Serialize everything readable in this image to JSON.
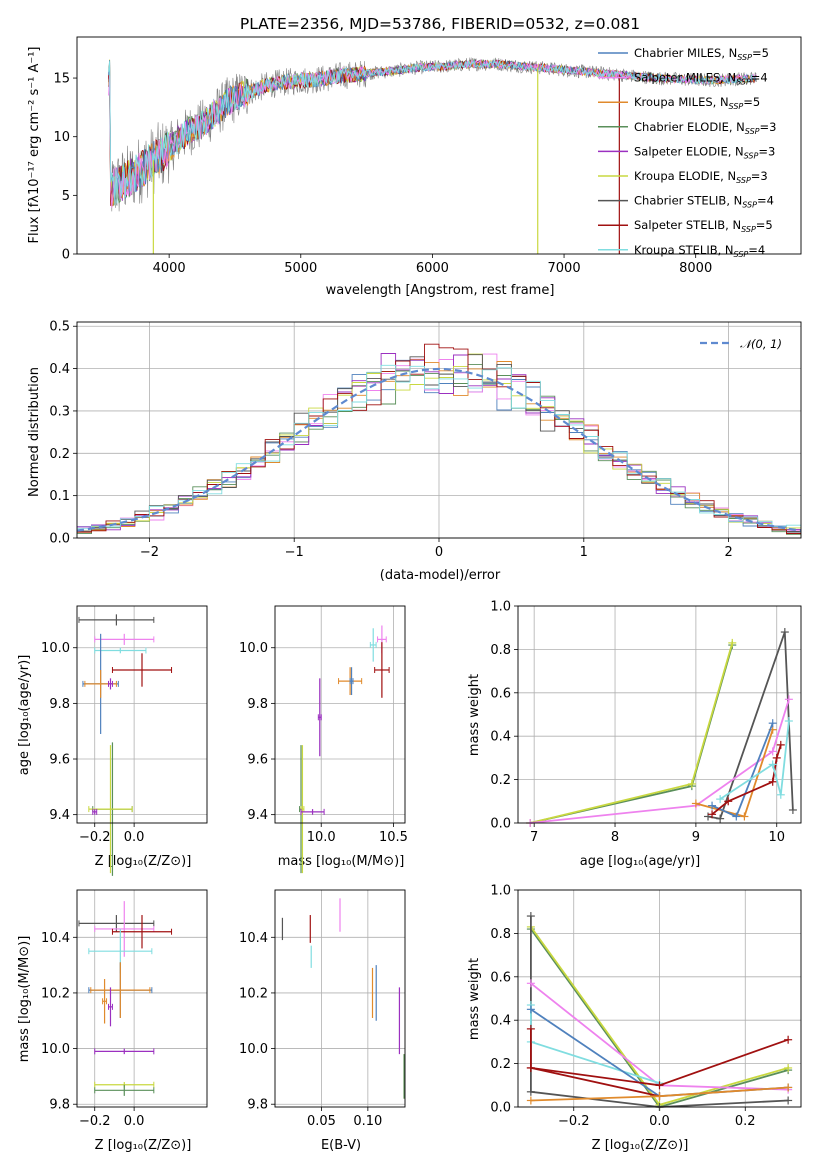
{
  "colors": {
    "grid": "#b0b0b0",
    "chabrier_miles": "#4f81bd",
    "salpeter_miles": "#ee82ee",
    "kroupa_miles": "#e08a2c",
    "chabrier_elodie": "#5a8f5a",
    "salpeter_elodie": "#9b30c0",
    "kroupa_elodie": "#c9d840",
    "chabrier_stelib": "#555555",
    "salpeter_stelib": "#a01010",
    "kroupa_stelib": "#80dde0",
    "normal": "#5f8ad0"
  },
  "series_names": [
    "Chabrier MILES, N_SSP=5",
    "Salpeter MILES, N_SSP=4",
    "Kroupa MILES, N_SSP=5",
    "Chabrier ELODIE, N_SSP=3",
    "Salpeter ELODIE, N_SSP=3",
    "Kroupa ELODIE, N_SSP=3",
    "Chabrier STELIB, N_SSP=4",
    "Salpeter STELIB, N_SSP=5",
    "Kroupa STELIB, N_SSP=4"
  ],
  "chart_data": [
    {
      "id": "spectrum",
      "type": "line",
      "title": "PLATE=2356, MJD=53786, FIBERID=0532, z=0.081",
      "xlabel": "wavelength [Angstrom, rest frame]",
      "ylabel": "Flux [fλ10⁻¹⁷ erg cm⁻² s⁻¹ A⁻¹]",
      "xlim": [
        3300,
        8800
      ],
      "ylim": [
        0,
        18.5
      ],
      "xticks": [
        4000,
        5000,
        6000,
        7000,
        8000
      ],
      "yticks": [
        0,
        5,
        10,
        15
      ],
      "legend_position": "top-right",
      "legend": [
        {
          "name": "Chabrier MILES, N",
          "sub": "SSP",
          "val": "=5",
          "color": "#4f81bd"
        },
        {
          "name": "Salpeter MILES, N",
          "sub": "SSP",
          "val": "=4",
          "color": "#ee82ee"
        },
        {
          "name": "Kroupa MILES, N",
          "sub": "SSP",
          "val": "=5",
          "color": "#e08a2c"
        },
        {
          "name": "Chabrier ELODIE, N",
          "sub": "SSP",
          "val": "=3",
          "color": "#5a8f5a"
        },
        {
          "name": "Salpeter ELODIE, N",
          "sub": "SSP",
          "val": "=3",
          "color": "#9b30c0"
        },
        {
          "name": "Kroupa ELODIE, N",
          "sub": "SSP",
          "val": "=3",
          "color": "#c9d840"
        },
        {
          "name": "Chabrier STELIB, N",
          "sub": "SSP",
          "val": "=4",
          "color": "#555555"
        },
        {
          "name": "Salpeter STELIB, N",
          "sub": "SSP",
          "val": "=5",
          "color": "#a01010"
        },
        {
          "name": "Kroupa STELIB, N",
          "sub": "SSP",
          "val": "=4",
          "color": "#80dde0"
        }
      ],
      "data_curve": {
        "x": [
          3550,
          3700,
          3850,
          3950,
          4050,
          4150,
          4250,
          4350,
          4450,
          4550,
          4650,
          4750,
          4850,
          5000,
          5150,
          5300,
          5500,
          5700,
          5900,
          6100,
          6300,
          6500,
          6700,
          6900,
          7100,
          7300,
          7500,
          7700,
          7900,
          8100,
          8300,
          8450
        ],
        "y": [
          5.5,
          6.5,
          7.8,
          8.5,
          9.5,
          10.5,
          11.0,
          12.0,
          13.0,
          13.6,
          14.0,
          14.4,
          14.6,
          14.8,
          14.9,
          15.2,
          15.4,
          15.6,
          15.9,
          16.0,
          16.2,
          16.2,
          16.0,
          15.8,
          15.6,
          15.4,
          15.2,
          15.0,
          14.9,
          14.8,
          14.9,
          15.0
        ]
      }
    },
    {
      "id": "residuals",
      "type": "line",
      "xlabel": "(data-model)/error",
      "ylabel": "Normed distribution",
      "xlim": [
        -2.5,
        2.5
      ],
      "ylim": [
        0,
        0.51
      ],
      "xticks": [
        -2,
        -1,
        0,
        1,
        2
      ],
      "xtick_labels": [
        "−2",
        "−1",
        "0",
        "1",
        "2"
      ],
      "yticks": [
        0.0,
        0.1,
        0.2,
        0.3,
        0.4,
        0.5
      ],
      "legend": [
        {
          "name": "𝒩(0, 1)",
          "color": "#5f8ad0"
        }
      ],
      "legend_position": "top-right"
    },
    {
      "id": "z_age",
      "type": "scatter",
      "xlabel": "Z [log₁₀(Z/Z⊙)]",
      "ylabel": "age  [log₁₀(age/yr)]",
      "xlim": [
        -0.29,
        0.37
      ],
      "ylim": [
        9.37,
        10.15
      ],
      "xticks": [
        -0.2,
        0.0
      ],
      "xtick_labels": [
        "−0.2",
        "0.0"
      ],
      "yticks": [
        9.4,
        9.6,
        9.8,
        10.0
      ],
      "points": [
        {
          "x": -0.09,
          "xerr": 0.19,
          "y": 10.1,
          "yerr": 0.02,
          "series": 6
        },
        {
          "x": -0.05,
          "xerr": 0.15,
          "y": 10.03,
          "yerr": 0.02,
          "series": 1
        },
        {
          "x": -0.07,
          "xerr": 0.13,
          "y": 9.99,
          "yerr": 0.01,
          "series": 8
        },
        {
          "x": 0.04,
          "xerr": 0.15,
          "y": 9.92,
          "yerr": 0.06,
          "series": 7
        },
        {
          "x": -0.17,
          "xerr": 0.09,
          "y": 9.87,
          "yerr": 0.18,
          "series": 0
        },
        {
          "x": -0.17,
          "xerr": 0.08,
          "y": 9.87,
          "yerr": 0.05,
          "series": 2
        },
        {
          "x": -0.12,
          "xerr": 0.01,
          "y": 9.87,
          "yerr": 0.02,
          "series": 4
        },
        {
          "x": -0.11,
          "xerr": 0.1,
          "y": 9.42,
          "yerr": 0.24,
          "series": 3
        },
        {
          "x": -0.12,
          "xerr": 0.11,
          "y": 9.42,
          "yerr": 0.23,
          "series": 5
        },
        {
          "x": -0.2,
          "xerr": 0.01,
          "y": 9.41,
          "yerr": 0.01,
          "series": 4
        }
      ]
    },
    {
      "id": "mass_age",
      "type": "scatter",
      "xlabel": "mass [log₁₀(M/M⊙)]",
      "ylabel": "",
      "xlim": [
        9.68,
        10.58
      ],
      "ylim": [
        9.37,
        10.15
      ],
      "xticks": [
        10.0,
        10.5
      ],
      "xtick_labels": [
        "10.0",
        "10.5"
      ],
      "yticks": [
        9.4,
        9.6,
        9.8,
        10.0
      ],
      "ytick_labels": [
        "9.4",
        "9.6",
        "9.8",
        "10.0"
      ],
      "points": [
        {
          "x": 10.42,
          "xerr": 0.03,
          "y": 10.03,
          "yerr": 0.05,
          "series": 1
        },
        {
          "x": 10.36,
          "xerr": 0.02,
          "y": 10.01,
          "yerr": 0.06,
          "series": 8
        },
        {
          "x": 10.42,
          "xerr": 0.05,
          "y": 9.92,
          "yerr": 0.1,
          "series": 7
        },
        {
          "x": 10.2,
          "xerr": 0.08,
          "y": 9.88,
          "yerr": 0.05,
          "series": 2
        },
        {
          "x": 10.21,
          "xerr": 0.01,
          "y": 9.88,
          "yerr": 0.05,
          "series": 0
        },
        {
          "x": 9.99,
          "xerr": 0.01,
          "y": 9.75,
          "yerr": 0.14,
          "series": 4
        },
        {
          "x": 9.86,
          "xerr": 0.01,
          "y": 9.42,
          "yerr": 0.23,
          "series": 3
        },
        {
          "x": 9.87,
          "xerr": 0.01,
          "y": 9.42,
          "yerr": 0.23,
          "series": 5
        },
        {
          "x": 9.94,
          "xerr": 0.08,
          "y": 9.41,
          "yerr": 0.01,
          "series": 4
        }
      ]
    },
    {
      "id": "age_weight",
      "type": "line",
      "xlabel": "age  [log₁₀(age/yr)]",
      "ylabel": "mass weight",
      "xlim": [
        6.8,
        10.3
      ],
      "ylim": [
        0,
        1.0
      ],
      "xticks": [
        7,
        8,
        9,
        10
      ],
      "yticks": [
        0.0,
        0.2,
        0.4,
        0.6,
        0.8,
        1.0
      ],
      "series": [
        {
          "series": 3,
          "x": [
            6.95,
            8.95,
            9.45
          ],
          "y": [
            0.0,
            0.17,
            0.82
          ]
        },
        {
          "series": 5,
          "x": [
            6.95,
            8.95,
            9.45
          ],
          "y": [
            0.0,
            0.18,
            0.83
          ]
        },
        {
          "series": 6,
          "x": [
            9.15,
            9.3,
            10.1,
            10.2
          ],
          "y": [
            0.03,
            0.02,
            0.88,
            0.06
          ]
        },
        {
          "series": 1,
          "x": [
            6.95,
            9.0,
            9.95,
            10.15
          ],
          "y": [
            0.0,
            0.08,
            0.33,
            0.57
          ]
        },
        {
          "series": 2,
          "x": [
            9.0,
            9.6,
            9.95
          ],
          "y": [
            0.09,
            0.03,
            0.43
          ]
        },
        {
          "series": 0,
          "x": [
            9.2,
            9.5,
            9.95
          ],
          "y": [
            0.08,
            0.03,
            0.46
          ]
        },
        {
          "series": 7,
          "x": [
            9.2,
            9.4,
            9.95,
            10.0,
            10.05
          ],
          "y": [
            0.04,
            0.1,
            0.19,
            0.3,
            0.36
          ]
        },
        {
          "series": 8,
          "x": [
            9.3,
            9.95,
            10.05,
            10.15
          ],
          "y": [
            0.11,
            0.27,
            0.13,
            0.47
          ]
        }
      ]
    },
    {
      "id": "z_mass",
      "type": "scatter",
      "xlabel": "Z [log₁₀(Z/Z⊙)]",
      "ylabel": "mass [log₁₀(M/M⊙)]",
      "xlim": [
        -0.29,
        0.37
      ],
      "ylim": [
        9.79,
        10.57
      ],
      "xticks": [
        -0.2,
        0.0
      ],
      "xtick_labels": [
        "−0.2",
        "0.0"
      ],
      "yticks": [
        9.8,
        10.0,
        10.2,
        10.4
      ],
      "points": [
        {
          "x": -0.09,
          "xerr": 0.19,
          "y": 10.45,
          "yerr": 0.03,
          "series": 6
        },
        {
          "x": -0.05,
          "xerr": 0.15,
          "y": 10.43,
          "yerr": 0.1,
          "series": 1
        },
        {
          "x": 0.04,
          "xerr": 0.15,
          "y": 10.42,
          "yerr": 0.06,
          "series": 7
        },
        {
          "x": -0.07,
          "xerr": 0.16,
          "y": 10.35,
          "yerr": 0.08,
          "series": 8
        },
        {
          "x": -0.07,
          "xerr": 0.16,
          "y": 10.21,
          "yerr": 0.1,
          "series": 0
        },
        {
          "x": -0.07,
          "xerr": 0.15,
          "y": 10.21,
          "yerr": 0.1,
          "series": 2
        },
        {
          "x": -0.15,
          "xerr": 0.01,
          "y": 10.17,
          "yerr": 0.08,
          "series": 2
        },
        {
          "x": -0.12,
          "xerr": 0.01,
          "y": 10.15,
          "yerr": 0.07,
          "series": 4
        },
        {
          "x": -0.05,
          "xerr": 0.15,
          "y": 9.99,
          "yerr": 0.01,
          "series": 4
        },
        {
          "x": -0.05,
          "xerr": 0.15,
          "y": 9.87,
          "yerr": 0.01,
          "series": 5
        },
        {
          "x": -0.05,
          "xerr": 0.15,
          "y": 9.85,
          "yerr": 0.02,
          "series": 3
        }
      ]
    },
    {
      "id": "ebv_mass",
      "type": "scatter",
      "xlabel": "E(B-V)",
      "ylabel": "",
      "xlim": [
        0.0,
        0.14
      ],
      "ylim": [
        9.79,
        10.57
      ],
      "xticks": [
        0.05,
        0.1
      ],
      "xtick_labels": [
        "0.05",
        "0.10"
      ],
      "yticks": [
        9.8,
        10.0,
        10.2,
        10.4
      ],
      "ytick_labels": [
        "9.8",
        "10.0",
        "10.2",
        "10.4"
      ],
      "points": [
        {
          "x": 0.008,
          "y": 10.43,
          "yerr": 0.04,
          "series": 6
        },
        {
          "x": 0.038,
          "y": 10.43,
          "yerr": 0.05,
          "series": 7
        },
        {
          "x": 0.039,
          "y": 10.33,
          "yerr": 0.04,
          "series": 8
        },
        {
          "x": 0.07,
          "y": 10.48,
          "yerr": 0.06,
          "series": 1
        },
        {
          "x": 0.105,
          "y": 10.2,
          "yerr": 0.09,
          "series": 2
        },
        {
          "x": 0.109,
          "y": 10.2,
          "yerr": 0.1,
          "series": 0
        },
        {
          "x": 0.134,
          "y": 10.1,
          "yerr": 0.12,
          "series": 4
        },
        {
          "x": 0.139,
          "y": 9.9,
          "yerr": 0.08,
          "series": 5
        },
        {
          "x": 0.139,
          "y": 9.9,
          "yerr": 0.08,
          "series": 3
        }
      ]
    },
    {
      "id": "z_weight",
      "type": "line",
      "xlabel": "Z [log₁₀(Z/Z⊙)]",
      "ylabel": "mass weight",
      "xlim": [
        -0.33,
        0.33
      ],
      "ylim": [
        0,
        1.0
      ],
      "xticks": [
        -0.2,
        0.0,
        0.2
      ],
      "xtick_labels": [
        "−0.2",
        "0.0",
        "0.2"
      ],
      "yticks": [
        0.0,
        0.2,
        0.4,
        0.6,
        0.8,
        1.0
      ],
      "series": [
        {
          "series": 3,
          "x": [
            -0.3,
            0.0,
            0.3
          ],
          "y": [
            0.82,
            0.0,
            0.17
          ]
        },
        {
          "series": 5,
          "x": [
            -0.3,
            0.0,
            0.3
          ],
          "y": [
            0.83,
            0.01,
            0.18
          ]
        },
        {
          "series": 6,
          "x": [
            -0.3,
            -0.3,
            0.0,
            0.3
          ],
          "y": [
            0.88,
            0.07,
            0.0,
            0.03
          ]
        },
        {
          "series": 1,
          "x": [
            -0.3,
            0.0,
            0.3
          ],
          "y": [
            0.57,
            0.1,
            0.08
          ]
        },
        {
          "series": 8,
          "x": [
            -0.3,
            -0.3,
            0.0
          ],
          "y": [
            0.47,
            0.3,
            0.11
          ]
        },
        {
          "series": 0,
          "x": [
            -0.3,
            0.0,
            0.3
          ],
          "y": [
            0.45,
            0.05,
            0.09
          ]
        },
        {
          "series": 7,
          "x": [
            -0.3,
            -0.3,
            0.0,
            0.3
          ],
          "y": [
            0.36,
            0.18,
            0.1,
            0.31
          ]
        },
        {
          "series": 7,
          "x": [
            -0.3,
            0.0
          ],
          "y": [
            0.18,
            0.05
          ]
        },
        {
          "series": 2,
          "x": [
            -0.3,
            0.0,
            0.3
          ],
          "y": [
            0.03,
            0.05,
            0.09
          ]
        }
      ]
    }
  ]
}
